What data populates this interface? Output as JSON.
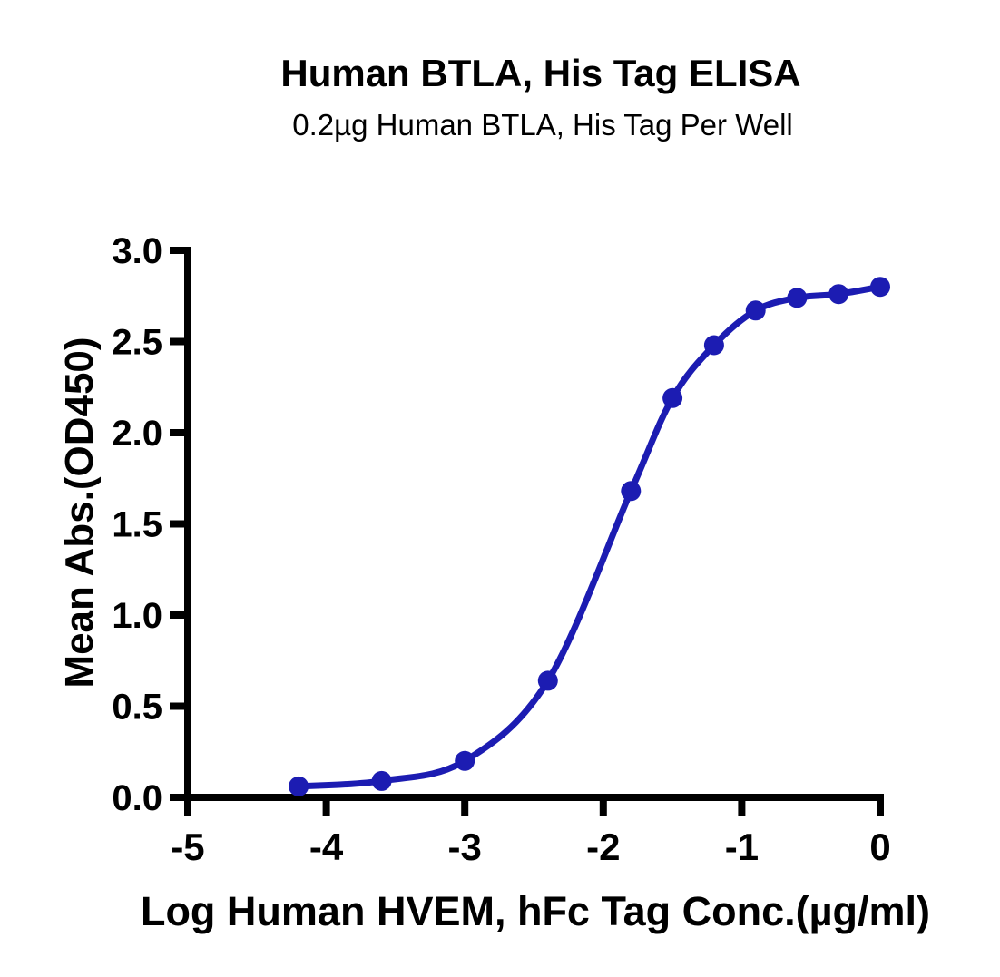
{
  "header": {
    "title": "Human BTLA, His Tag ELISA",
    "subtitle": "0.2µg Human BTLA, His Tag Per Well"
  },
  "chart_data": {
    "type": "line",
    "x": [
      -4.2,
      -3.6,
      -3.0,
      -2.4,
      -1.8,
      -1.5,
      -1.2,
      -0.9,
      -0.6,
      -0.3,
      0
    ],
    "y": [
      0.06,
      0.09,
      0.2,
      0.64,
      1.68,
      2.19,
      2.48,
      2.67,
      2.74,
      2.76,
      2.8
    ],
    "title": "Human BTLA, His Tag ELISA",
    "subtitle": "0.2µg Human BTLA, His Tag Per Well",
    "xlabel": "Log Human HVEM, hFc Tag Conc.(µg/ml)",
    "ylabel": "Mean Abs.(OD450)",
    "xlim": [
      -5,
      0
    ],
    "ylim": [
      0,
      3
    ],
    "x_ticks": [
      -5,
      -4,
      -3,
      -2,
      -1,
      0
    ],
    "x_tick_labels": [
      "-5",
      "-4",
      "-3",
      "-2",
      "-1",
      "0"
    ],
    "y_ticks": [
      0.0,
      0.5,
      1.0,
      1.5,
      2.0,
      2.5,
      3.0
    ],
    "y_tick_labels": [
      "0.0",
      "0.5",
      "1.0",
      "1.5",
      "2.0",
      "2.5",
      "3.0"
    ],
    "grid": false,
    "legend": "none",
    "curve_color": "#1c1cb2",
    "axis_color": "#000000",
    "marker": "circle"
  }
}
